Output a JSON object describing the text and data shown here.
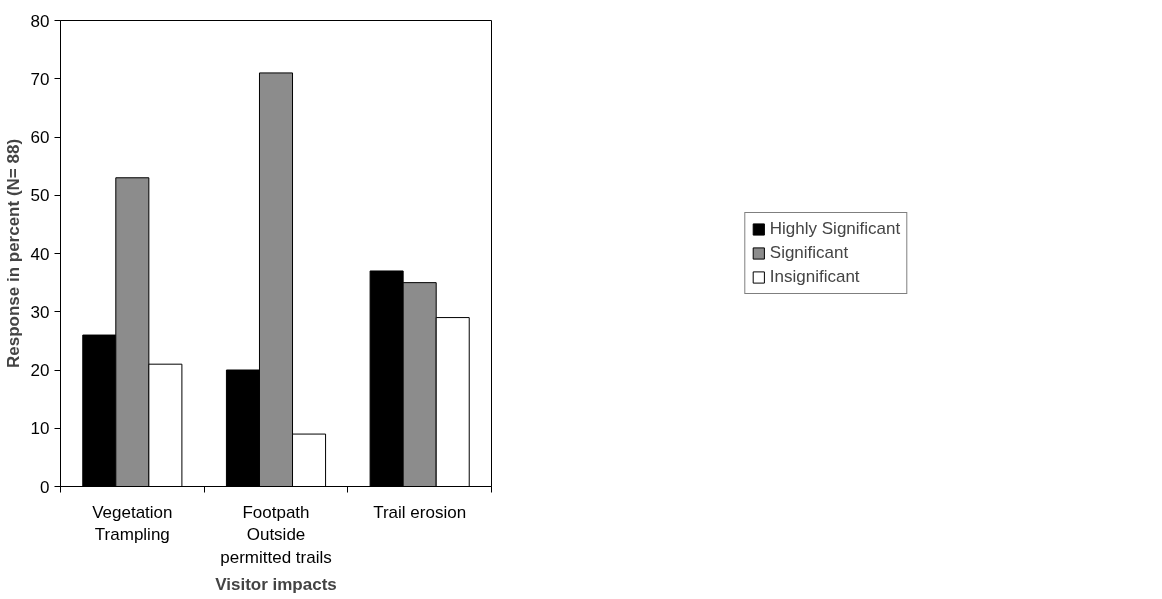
{
  "chart_data": {
    "type": "bar",
    "xlabel": "Visitor impacts",
    "ylabel": "Response in percent (N= 88)",
    "categories": [
      "Vegetation\nTrampling",
      "Footpath\nOutside\npermitted trails",
      "Trail erosion"
    ],
    "series": [
      {
        "name": "Highly Significant",
        "color": "#000000",
        "values": [
          26,
          20,
          37
        ]
      },
      {
        "name": "Significant",
        "color": "#8c8c8c",
        "values": [
          53,
          71,
          35
        ]
      },
      {
        "name": "Insignificant",
        "color": "#ffffff",
        "values": [
          21,
          9,
          29
        ]
      }
    ],
    "ylim": [
      0,
      80
    ],
    "yticks": [
      0,
      10,
      20,
      30,
      40,
      50,
      60,
      70,
      80
    ],
    "grid": false,
    "legend": "right"
  }
}
